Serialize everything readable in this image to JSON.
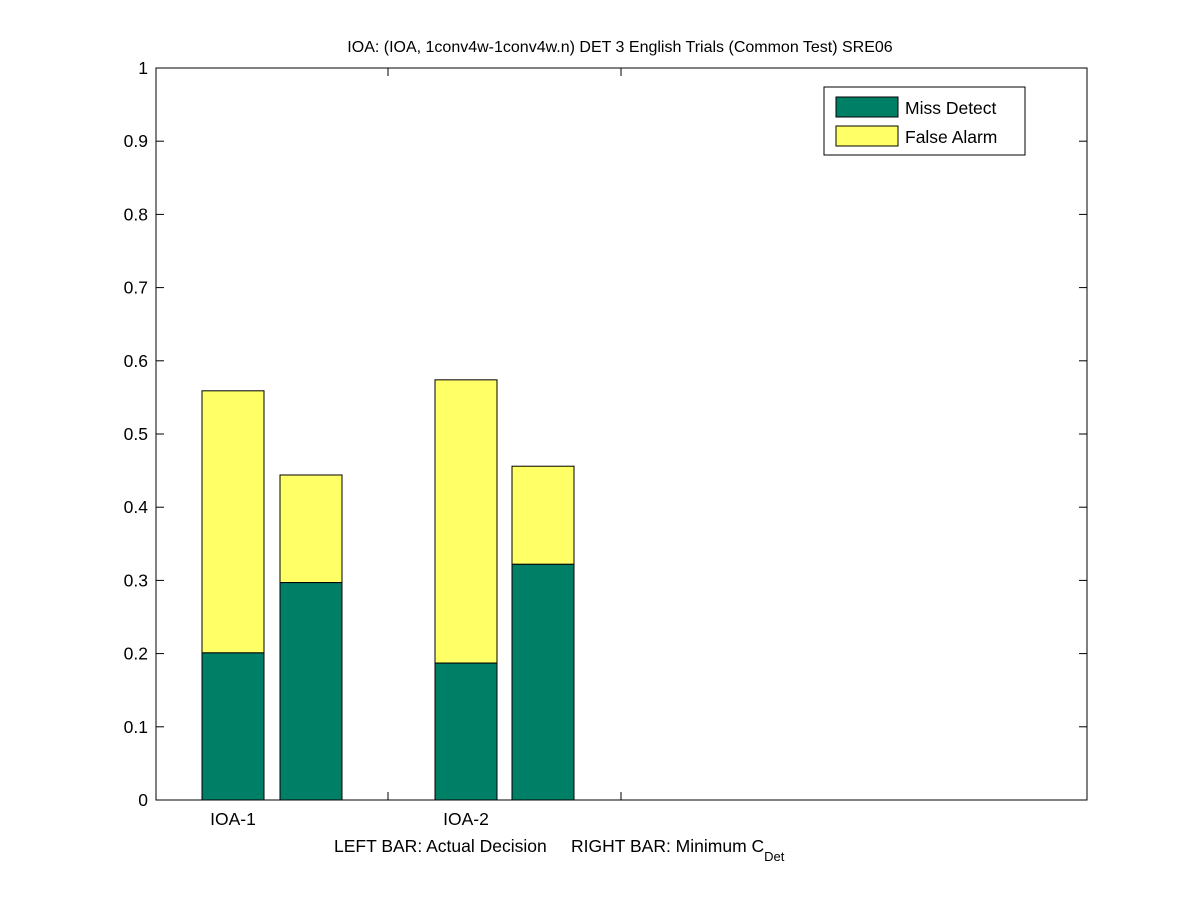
{
  "chart_data": {
    "type": "bar",
    "stacked": true,
    "title": "IOA: (IOA, 1conv4w-1conv4w.n) DET 3 English Trials (Common Test) SRE06",
    "xlabel_parts": {
      "main": "LEFT BAR: Actual Decision     RIGHT BAR: Minimum C",
      "subscript": "Det"
    },
    "ylabel": "",
    "ylim": [
      0,
      1
    ],
    "yticks": [
      "0",
      "0.1",
      "0.2",
      "0.3",
      "0.4",
      "0.5",
      "0.6",
      "0.7",
      "0.8",
      "0.9",
      "1"
    ],
    "categories": [
      "IOA-1",
      "IOA-2"
    ],
    "bars": [
      {
        "category": "IOA-1",
        "kind": "Actual Decision",
        "miss_detect": 0.201,
        "false_alarm": 0.358
      },
      {
        "category": "IOA-1",
        "kind": "Minimum CDet",
        "miss_detect": 0.297,
        "false_alarm": 0.147
      },
      {
        "category": "IOA-2",
        "kind": "Actual Decision",
        "miss_detect": 0.187,
        "false_alarm": 0.387
      },
      {
        "category": "IOA-2",
        "kind": "Minimum CDet",
        "miss_detect": 0.322,
        "false_alarm": 0.134
      }
    ],
    "series": [
      {
        "name": "Miss Detect",
        "color": "#007f67"
      },
      {
        "name": "False Alarm",
        "color": "#ffff66"
      }
    ],
    "legend": "top-right",
    "grid": false
  }
}
